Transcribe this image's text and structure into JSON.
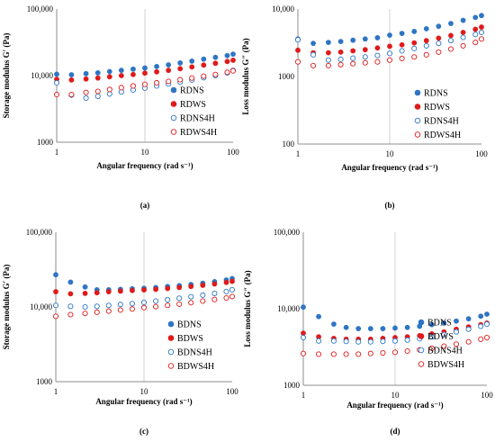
{
  "chart_data": [
    {
      "type": "scatter",
      "panel_label": "(a)",
      "xlabel": "Angular frequency (rad s⁻¹)",
      "ylabel": "Storage modulus G′ (Pa)",
      "xscale": "log",
      "yscale": "log",
      "xlim": [
        1,
        100
      ],
      "ylim": [
        1000,
        100000
      ],
      "xticks": [
        "1",
        "10",
        "100"
      ],
      "yticks": [
        "1000",
        "10,000",
        "100,000"
      ],
      "grid": "vertical at 10",
      "legend": "right",
      "x": [
        1,
        1.47,
        2.15,
        2.93,
        3.98,
        5.41,
        7.36,
        10,
        13.6,
        18.5,
        25.1,
        34.1,
        46.4,
        63.1,
        85.8,
        100
      ],
      "series": [
        {
          "name": "RDNS",
          "style": "filled",
          "color": "#2e75c4",
          "values": [
            10500,
            10300,
            10700,
            11000,
            11500,
            12000,
            12500,
            13000,
            13700,
            14500,
            15500,
            16500,
            17700,
            18800,
            20000,
            21000
          ]
        },
        {
          "name": "RDWS",
          "style": "filled",
          "color": "#e01a1a",
          "values": [
            8800,
            8600,
            8900,
            9200,
            9600,
            10000,
            10400,
            10900,
            11400,
            12000,
            12700,
            13500,
            14400,
            15300,
            16300,
            17000
          ]
        },
        {
          "name": "RDNS4H",
          "style": "open",
          "color": "#2e75c4",
          "values": [
            7800,
            5100,
            4600,
            4900,
            5300,
            5700,
            6100,
            6500,
            7000,
            7500,
            8000,
            8600,
            9300,
            10000,
            11000,
            12000
          ]
        },
        {
          "name": "RDWS4H",
          "style": "open",
          "color": "#e01a1a",
          "values": [
            5200,
            5200,
            5600,
            5800,
            6200,
            6600,
            7000,
            7400,
            7800,
            8200,
            8700,
            9200,
            9800,
            10400,
            11200,
            11800
          ]
        }
      ]
    },
    {
      "type": "scatter",
      "panel_label": "(b)",
      "xlabel": "Angular frequency (rad s⁻¹)",
      "ylabel": "Loss modulus G″ (Pa)",
      "xscale": "log",
      "yscale": "log",
      "xlim": [
        1,
        100
      ],
      "ylim": [
        100,
        10000
      ],
      "xticks": [
        "1",
        "10",
        "100"
      ],
      "yticks": [
        "100",
        "1000",
        "10,000"
      ],
      "grid": "vertical at 10",
      "legend": "right",
      "x": [
        1,
        1.47,
        2.15,
        2.93,
        3.98,
        5.41,
        7.36,
        10,
        13.6,
        18.5,
        25.1,
        34.1,
        46.4,
        63.1,
        85.8,
        100
      ],
      "series": [
        {
          "name": "RDNS",
          "style": "filled",
          "color": "#2e75c4",
          "values": [
            3600,
            3100,
            3200,
            3300,
            3450,
            3600,
            3750,
            4100,
            4350,
            4650,
            5100,
            5550,
            6100,
            6800,
            7500,
            8000
          ]
        },
        {
          "name": "RDWS",
          "style": "filled",
          "color": "#e01a1a",
          "values": [
            2450,
            2250,
            2250,
            2300,
            2400,
            2500,
            2650,
            2800,
            2950,
            3150,
            3400,
            3700,
            4050,
            4500,
            5000,
            5400
          ]
        },
        {
          "name": "RDNS4H",
          "style": "open",
          "color": "#2e75c4",
          "values": [
            3500,
            2100,
            1750,
            1800,
            1870,
            1950,
            2050,
            2200,
            2400,
            2600,
            2850,
            3100,
            3400,
            3800,
            4200,
            4500
          ]
        },
        {
          "name": "RDWS4H",
          "style": "open",
          "color": "#e01a1a",
          "values": [
            1650,
            1450,
            1450,
            1500,
            1550,
            1600,
            1650,
            1750,
            1850,
            1950,
            2100,
            2300,
            2550,
            2850,
            3200,
            3600
          ]
        }
      ]
    },
    {
      "type": "scatter",
      "panel_label": "(c)",
      "xlabel": "Angular frequency (rad s⁻¹)",
      "ylabel": "Storage modulus G′ (Pa)",
      "xscale": "log",
      "yscale": "log",
      "xlim": [
        1,
        100
      ],
      "ylim": [
        1000,
        100000
      ],
      "xticks": [
        "1",
        "10",
        "100"
      ],
      "yticks": [
        "1000",
        "10,000",
        "100,000"
      ],
      "grid": "vertical at 10",
      "legend": "right",
      "x": [
        1,
        1.47,
        2.15,
        2.93,
        3.98,
        5.41,
        7.36,
        10,
        13.6,
        18.5,
        25.1,
        34.1,
        46.4,
        63.1,
        85.8,
        100
      ],
      "series": [
        {
          "name": "BDNS",
          "style": "filled",
          "color": "#2e75c4",
          "values": [
            27000,
            21500,
            18500,
            17000,
            17000,
            17200,
            17500,
            17800,
            18200,
            18800,
            19300,
            20000,
            20800,
            21800,
            23000,
            24000
          ]
        },
        {
          "name": "BDWS",
          "style": "filled",
          "color": "#e01a1a",
          "values": [
            16000,
            15000,
            15200,
            15500,
            16000,
            16300,
            16600,
            16900,
            17200,
            17700,
            18200,
            18800,
            19500,
            20300,
            21300,
            22000
          ]
        },
        {
          "name": "BDNS4H",
          "style": "open",
          "color": "#2e75c4",
          "values": [
            10500,
            10200,
            10000,
            10200,
            10500,
            10800,
            11100,
            11500,
            12000,
            12500,
            13100,
            13700,
            14400,
            15200,
            16100,
            17000
          ]
        },
        {
          "name": "BDWS4H",
          "style": "open",
          "color": "#e01a1a",
          "values": [
            7500,
            7900,
            8200,
            8500,
            8800,
            9100,
            9400,
            9800,
            10100,
            10500,
            10900,
            11400,
            12000,
            12600,
            13200,
            13800
          ]
        }
      ]
    },
    {
      "type": "scatter",
      "panel_label": "(d)",
      "xlabel": "Angular frequency (rad s⁻¹)",
      "ylabel": "Loss modulus G″ (Pa)",
      "xscale": "log",
      "yscale": "log",
      "xlim": [
        1,
        100
      ],
      "ylim": [
        1000,
        100000
      ],
      "xticks": [
        "1",
        "10",
        "100"
      ],
      "yticks": [
        "1000",
        "10,000",
        "100,000"
      ],
      "grid": "vertical at 10",
      "legend": "right",
      "x": [
        1,
        1.47,
        2.15,
        2.93,
        3.98,
        5.41,
        7.36,
        10,
        13.6,
        18.5,
        25.1,
        34.1,
        46.4,
        63.1,
        85.8,
        100
      ],
      "series": [
        {
          "name": "BDNS",
          "style": "filled",
          "color": "#2e75c4",
          "values": [
            10500,
            7900,
            6300,
            5700,
            5500,
            5500,
            5500,
            5600,
            5700,
            5900,
            6200,
            6500,
            6900,
            7400,
            8000,
            8500
          ]
        },
        {
          "name": "BDWS",
          "style": "filled",
          "color": "#e01a1a",
          "values": [
            4800,
            4300,
            4100,
            4000,
            4000,
            4000,
            4100,
            4200,
            4300,
            4450,
            4700,
            5000,
            5400,
            5800,
            6200,
            6500
          ]
        },
        {
          "name": "BDNS4H",
          "style": "open",
          "color": "#2e75c4",
          "values": [
            4200,
            3800,
            3800,
            3750,
            3700,
            3700,
            3750,
            3800,
            3900,
            4050,
            4300,
            4600,
            5000,
            5400,
            5900,
            6300
          ]
        },
        {
          "name": "BDWS4H",
          "style": "open",
          "color": "#e01a1a",
          "values": [
            2600,
            2550,
            2550,
            2550,
            2550,
            2600,
            2650,
            2700,
            2800,
            2900,
            3050,
            3250,
            3450,
            3700,
            4000,
            4200
          ]
        }
      ]
    }
  ]
}
